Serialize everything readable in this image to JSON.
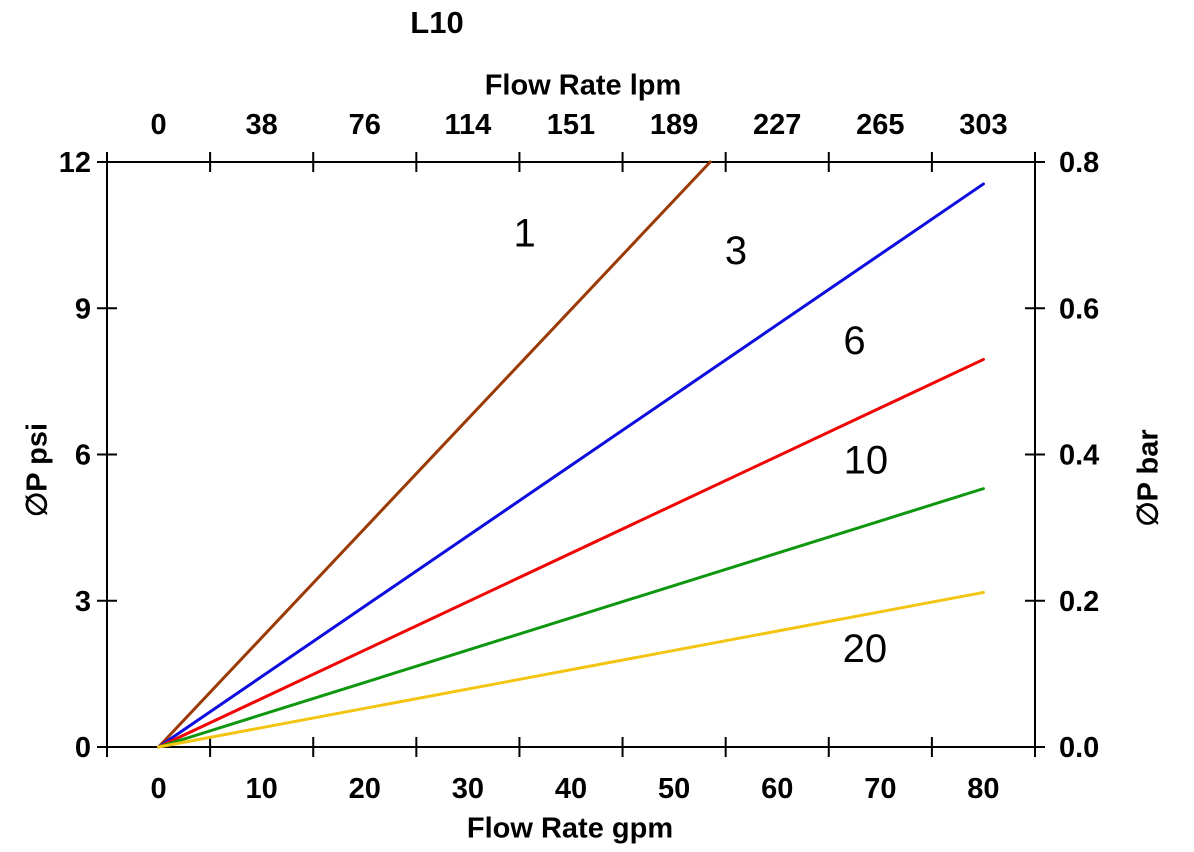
{
  "chart_data": {
    "type": "line",
    "title": "L10",
    "axes": {
      "top": {
        "label": "Flow Rate lpm",
        "tick_labels": [
          "0",
          "38",
          "76",
          "114",
          "151",
          "189",
          "227",
          "265",
          "303"
        ]
      },
      "bottom": {
        "label": "Flow Rate gpm",
        "tick_labels": [
          "0",
          "10",
          "20",
          "30",
          "40",
          "50",
          "60",
          "70",
          "80"
        ]
      },
      "left": {
        "label": "∅P psi",
        "tick_labels": [
          "0",
          "3",
          "6",
          "9",
          "12"
        ],
        "range": [
          0,
          12
        ]
      },
      "right": {
        "label": "∅P bar",
        "tick_labels": [
          "0.0",
          "0.2",
          "0.4",
          "0.6",
          "0.8"
        ],
        "range": [
          0.0,
          0.8
        ]
      }
    },
    "x_axis_note": "x in gpm; plot box spans -5 to 85 gpm; labels centered between boundary ticks",
    "x_range_gpm": [
      -5,
      85
    ],
    "grid": false,
    "legend": "inline labels next to lines",
    "series": [
      {
        "name": "1",
        "color": "#9C3A05",
        "points": [
          [
            0,
            0
          ],
          [
            53.5,
            12.0
          ]
        ],
        "label_at": [
          35.5,
          10.55
        ]
      },
      {
        "name": "3",
        "color": "#0D0DDF",
        "points": [
          [
            0,
            0
          ],
          [
            80,
            11.55
          ]
        ],
        "label_at": [
          56.0,
          10.2
        ]
      },
      {
        "name": "6",
        "color": "#F00505",
        "points": [
          [
            0,
            0
          ],
          [
            80,
            7.95
          ]
        ],
        "label_at": [
          67.5,
          8.35
        ]
      },
      {
        "name": "10",
        "color": "#0E970E",
        "points": [
          [
            0,
            0
          ],
          [
            80,
            5.3
          ]
        ],
        "label_at": [
          68.6,
          5.9
        ]
      },
      {
        "name": "20",
        "color": "#F3C513",
        "points": [
          [
            0,
            0
          ],
          [
            80,
            3.17
          ]
        ],
        "label_at": [
          68.5,
          2.03
        ]
      }
    ],
    "style": {
      "axis_color": "#000000",
      "text_color": "#000000",
      "background": "#ffffff"
    }
  }
}
